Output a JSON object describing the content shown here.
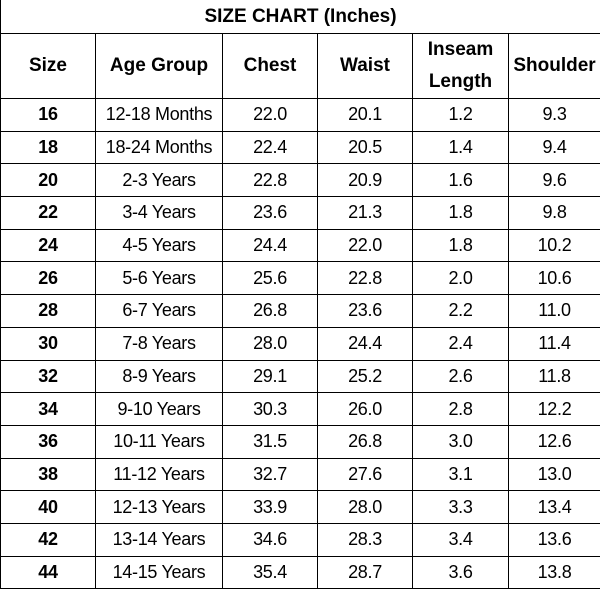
{
  "title": "SIZE CHART (Inches)",
  "table": {
    "headers": [
      "Size",
      "Age Group",
      "Chest",
      "Waist",
      "Inseam Length",
      "Shoulder"
    ],
    "rows": [
      [
        "16",
        "12-18 Months",
        "22.0",
        "20.1",
        "1.2",
        "9.3"
      ],
      [
        "18",
        "18-24 Months",
        "22.4",
        "20.5",
        "1.4",
        "9.4"
      ],
      [
        "20",
        "2-3 Years",
        "22.8",
        "20.9",
        "1.6",
        "9.6"
      ],
      [
        "22",
        "3-4 Years",
        "23.6",
        "21.3",
        "1.8",
        "9.8"
      ],
      [
        "24",
        "4-5 Years",
        "24.4",
        "22.0",
        "1.8",
        "10.2"
      ],
      [
        "26",
        "5-6 Years",
        "25.6",
        "22.8",
        "2.0",
        "10.6"
      ],
      [
        "28",
        "6-7 Years",
        "26.8",
        "23.6",
        "2.2",
        "11.0"
      ],
      [
        "30",
        "7-8 Years",
        "28.0",
        "24.4",
        "2.4",
        "11.4"
      ],
      [
        "32",
        "8-9 Years",
        "29.1",
        "25.2",
        "2.6",
        "11.8"
      ],
      [
        "34",
        "9-10 Years",
        "30.3",
        "26.0",
        "2.8",
        "12.2"
      ],
      [
        "36",
        "10-11 Years",
        "31.5",
        "26.8",
        "3.0",
        "12.6"
      ],
      [
        "38",
        "11-12 Years",
        "32.7",
        "27.6",
        "3.1",
        "13.0"
      ],
      [
        "40",
        "12-13 Years",
        "33.9",
        "28.0",
        "3.3",
        "13.4"
      ],
      [
        "42",
        "13-14 Years",
        "34.6",
        "28.3",
        "3.4",
        "13.6"
      ],
      [
        "44",
        "14-15 Years",
        "35.4",
        "28.7",
        "3.6",
        "13.8"
      ]
    ]
  }
}
